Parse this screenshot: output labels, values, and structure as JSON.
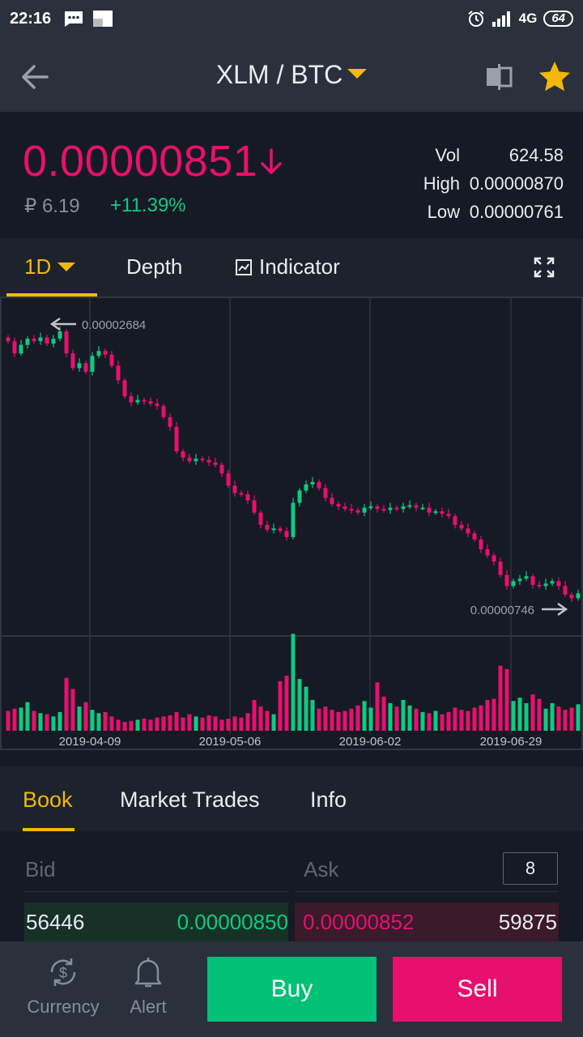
{
  "status_bar": {
    "time": "22:16",
    "network": "4G",
    "battery": "64",
    "icons": [
      "message-icon",
      "gallery-icon",
      "alarm-icon",
      "signal-icon"
    ]
  },
  "header": {
    "pair": "XLM / BTC",
    "icons": [
      "back-arrow-icon",
      "compare-icon",
      "star-icon"
    ],
    "star_color": "#f0b90b"
  },
  "ticker": {
    "last_price": "0.00000851",
    "direction": "down",
    "fiat_price": "₽ 6.19",
    "change_percent": "+11.39%",
    "vol_label": "Vol",
    "vol_value": "624.58",
    "high_label": "High",
    "high_value": "0.00000870",
    "low_label": "Low",
    "low_value": "0.00000761"
  },
  "chart_tabs": {
    "interval": "1D",
    "depth": "Depth",
    "indicator": "Indicator"
  },
  "colors": {
    "accent": "#f0b90b",
    "up": "#0ecb81",
    "down": "#e8106e",
    "background": "#161a25"
  },
  "chart_data": {
    "type": "candlestick",
    "price_annotations": {
      "max_label": "0.00002684",
      "min_label": "0.00000746"
    },
    "x_tick_labels": [
      "2019-04-09",
      "2019-05-06",
      "2019-06-02",
      "2019-06-29"
    ],
    "grid": true,
    "closes": [
      2.5,
      2.4,
      2.47,
      2.52,
      2.5,
      2.53,
      2.48,
      2.52,
      2.58,
      2.4,
      2.28,
      2.32,
      2.25,
      2.38,
      2.42,
      2.39,
      2.3,
      2.18,
      2.05,
      2.0,
      2.02,
      2.01,
      1.99,
      1.97,
      1.88,
      1.8,
      1.6,
      1.55,
      1.52,
      1.54,
      1.53,
      1.51,
      1.49,
      1.42,
      1.32,
      1.26,
      1.25,
      1.2,
      1.1,
      1.0,
      0.96,
      0.97,
      0.95,
      0.9,
      1.18,
      1.28,
      1.33,
      1.35,
      1.3,
      1.22,
      1.17,
      1.15,
      1.13,
      1.12,
      1.1,
      1.14,
      1.15,
      1.13,
      1.12,
      1.14,
      1.13,
      1.15,
      1.16,
      1.14,
      1.14,
      1.1,
      1.11,
      1.09,
      1.07,
      1.0,
      0.97,
      0.93,
      0.88,
      0.8,
      0.75,
      0.7,
      0.59,
      0.5,
      0.54,
      0.56,
      0.58,
      0.51,
      0.5,
      0.52,
      0.54,
      0.5,
      0.43,
      0.4,
      0.44
    ],
    "volumes": [
      0.18,
      0.2,
      0.21,
      0.26,
      0.18,
      0.16,
      0.15,
      0.13,
      0.17,
      0.48,
      0.38,
      0.22,
      0.26,
      0.19,
      0.16,
      0.17,
      0.13,
      0.1,
      0.08,
      0.09,
      0.1,
      0.11,
      0.1,
      0.12,
      0.13,
      0.14,
      0.17,
      0.12,
      0.15,
      0.13,
      0.12,
      0.14,
      0.13,
      0.1,
      0.11,
      0.13,
      0.12,
      0.16,
      0.28,
      0.22,
      0.18,
      0.15,
      0.45,
      0.5,
      0.88,
      0.47,
      0.4,
      0.28,
      0.2,
      0.22,
      0.19,
      0.17,
      0.18,
      0.2,
      0.23,
      0.27,
      0.21,
      0.44,
      0.31,
      0.25,
      0.22,
      0.28,
      0.23,
      0.2,
      0.17,
      0.16,
      0.18,
      0.15,
      0.17,
      0.21,
      0.19,
      0.18,
      0.21,
      0.23,
      0.28,
      0.29,
      0.59,
      0.56,
      0.27,
      0.3,
      0.25,
      0.33,
      0.29,
      0.2,
      0.25,
      0.22,
      0.19,
      0.21,
      0.24
    ]
  },
  "book_tabs": {
    "book": "Book",
    "market_trades": "Market Trades",
    "info": "Info"
  },
  "orderbook": {
    "bid_label": "Bid",
    "ask_label": "Ask",
    "depth_value": "8",
    "bid_qty": "56446",
    "bid_price": "0.00000850",
    "ask_price": "0.00000852",
    "ask_qty": "59875"
  },
  "bottom_bar": {
    "currency": "Currency",
    "alert": "Alert",
    "buy": "Buy",
    "sell": "Sell"
  }
}
